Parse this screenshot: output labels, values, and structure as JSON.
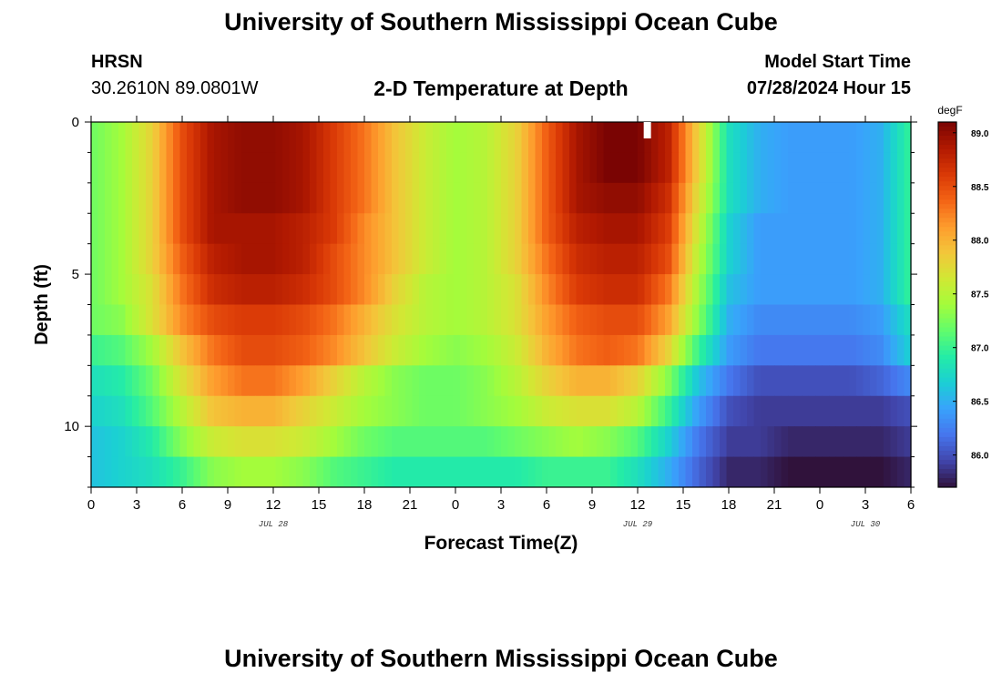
{
  "page_title": "University of Southern Mississippi Ocean Cube",
  "page_title_bottom": "University of Southern Mississippi Ocean Cube",
  "station": {
    "name": "HRSN",
    "coords": "30.2610N  89.0801W"
  },
  "plot_title": "2-D Temperature at Depth",
  "model_start": {
    "label": "Model Start Time",
    "value": "07/28/2024 Hour 15"
  },
  "chart_data": {
    "type": "heatmap",
    "title": "2-D Temperature at Depth",
    "xlabel": "Forecast Time(Z)",
    "ylabel": "Depth (ft)",
    "colorbar_label": "degF",
    "x_ticks": [
      "0",
      "3",
      "6",
      "9",
      "12",
      "15",
      "18",
      "21",
      "0",
      "3",
      "6",
      "9",
      "12",
      "15",
      "18",
      "21",
      "0",
      "3",
      "6"
    ],
    "x_range_hours": [
      0,
      54
    ],
    "date_labels": [
      {
        "label": "JUL 28",
        "at_hour": 12
      },
      {
        "label": "JUL 29",
        "at_hour": 36
      },
      {
        "label": "JUL 30",
        "at_hour": 51
      }
    ],
    "y_ticks": [
      "0",
      "5",
      "10"
    ],
    "y_range_ft": [
      0,
      12
    ],
    "y_inverted": true,
    "colorbar_ticks": [
      "89.0",
      "88.5",
      "88.0",
      "87.5",
      "87.0",
      "86.5",
      "86.0"
    ],
    "color_range_degF": [
      85.7,
      89.1
    ],
    "colormap": [
      "#30123b",
      "#4145ab",
      "#4675ed",
      "#39a2fc",
      "#1bcfd4",
      "#24eca6",
      "#61fc6c",
      "#a4fc3b",
      "#d1e834",
      "#f3c63a",
      "#fe9b2d",
      "#f36315",
      "#d93806",
      "#b11901",
      "#7a0403"
    ],
    "depth_levels_ft": [
      0.5,
      1.5,
      2.5,
      3.5,
      4.5,
      5.5,
      6.5,
      7.5,
      8.5,
      9.5,
      10.5,
      11.5
    ],
    "time_hours": [
      0,
      2,
      4,
      6,
      8,
      10,
      12,
      14,
      16,
      18,
      20,
      22,
      24,
      26,
      28,
      30,
      32,
      34,
      36,
      38,
      40,
      42,
      44,
      46,
      48,
      50,
      52,
      54
    ],
    "temperature_degF": [
      [
        87.2,
        87.4,
        87.8,
        88.5,
        88.9,
        89.0,
        89.0,
        88.9,
        88.6,
        88.3,
        87.9,
        87.6,
        87.4,
        87.5,
        87.8,
        88.4,
        88.9,
        89.1,
        89.1,
        88.8,
        87.8,
        86.8,
        86.5,
        86.4,
        86.4,
        86.4,
        86.5,
        87.0
      ],
      [
        87.2,
        87.4,
        87.8,
        88.5,
        88.9,
        89.0,
        89.0,
        88.9,
        88.6,
        88.3,
        87.9,
        87.6,
        87.4,
        87.5,
        87.8,
        88.4,
        88.9,
        89.1,
        89.1,
        88.8,
        87.8,
        86.8,
        86.5,
        86.4,
        86.4,
        86.4,
        86.5,
        87.0
      ],
      [
        87.2,
        87.4,
        87.8,
        88.5,
        88.9,
        89.0,
        89.0,
        88.9,
        88.6,
        88.3,
        87.9,
        87.6,
        87.4,
        87.5,
        87.8,
        88.4,
        88.9,
        89.0,
        89.0,
        88.7,
        87.7,
        86.8,
        86.5,
        86.4,
        86.4,
        86.4,
        86.5,
        87.0
      ],
      [
        87.2,
        87.4,
        87.8,
        88.5,
        88.9,
        88.9,
        88.9,
        88.8,
        88.6,
        88.2,
        87.9,
        87.6,
        87.4,
        87.5,
        87.8,
        88.4,
        88.8,
        88.9,
        88.9,
        88.6,
        87.6,
        86.7,
        86.4,
        86.4,
        86.4,
        86.4,
        86.5,
        87.0
      ],
      [
        87.2,
        87.4,
        87.8,
        88.4,
        88.8,
        88.9,
        88.9,
        88.8,
        88.5,
        88.2,
        87.9,
        87.6,
        87.4,
        87.5,
        87.8,
        88.3,
        88.7,
        88.8,
        88.8,
        88.5,
        87.5,
        86.7,
        86.4,
        86.4,
        86.4,
        86.4,
        86.5,
        87.0
      ],
      [
        87.2,
        87.4,
        87.7,
        88.3,
        88.7,
        88.8,
        88.8,
        88.7,
        88.5,
        88.2,
        87.8,
        87.5,
        87.4,
        87.5,
        87.7,
        88.2,
        88.6,
        88.7,
        88.7,
        88.3,
        87.4,
        86.6,
        86.4,
        86.4,
        86.4,
        86.4,
        86.5,
        87.0
      ],
      [
        87.2,
        87.3,
        87.7,
        88.2,
        88.5,
        88.6,
        88.6,
        88.5,
        88.3,
        88.0,
        87.7,
        87.5,
        87.4,
        87.5,
        87.7,
        88.1,
        88.4,
        88.5,
        88.5,
        88.1,
        87.3,
        86.5,
        86.3,
        86.3,
        86.3,
        86.3,
        86.4,
        86.8
      ],
      [
        87.0,
        87.1,
        87.4,
        87.9,
        88.3,
        88.5,
        88.5,
        88.4,
        88.2,
        87.9,
        87.6,
        87.4,
        87.3,
        87.4,
        87.6,
        88.0,
        88.3,
        88.4,
        88.3,
        87.8,
        87.0,
        86.4,
        86.2,
        86.2,
        86.2,
        86.2,
        86.3,
        86.7
      ],
      [
        86.8,
        86.9,
        87.2,
        87.7,
        88.1,
        88.3,
        88.3,
        88.1,
        87.8,
        87.5,
        87.3,
        87.2,
        87.2,
        87.3,
        87.5,
        87.8,
        88.0,
        88.0,
        87.8,
        87.3,
        86.6,
        86.2,
        86.0,
        86.0,
        86.0,
        86.0,
        86.1,
        86.3
      ],
      [
        86.7,
        86.8,
        87.1,
        87.5,
        87.9,
        88.0,
        88.0,
        87.8,
        87.6,
        87.4,
        87.3,
        87.2,
        87.2,
        87.3,
        87.4,
        87.6,
        87.7,
        87.7,
        87.5,
        87.0,
        86.4,
        86.0,
        85.9,
        85.9,
        85.9,
        85.9,
        85.9,
        86.0
      ],
      [
        86.6,
        86.7,
        86.9,
        87.3,
        87.6,
        87.7,
        87.7,
        87.6,
        87.4,
        87.2,
        87.1,
        87.1,
        87.1,
        87.1,
        87.2,
        87.3,
        87.4,
        87.3,
        87.1,
        86.7,
        86.2,
        85.9,
        85.9,
        85.8,
        85.8,
        85.8,
        85.8,
        85.9
      ],
      [
        86.6,
        86.7,
        86.8,
        87.0,
        87.3,
        87.4,
        87.4,
        87.3,
        87.1,
        87.0,
        86.9,
        86.9,
        86.9,
        86.9,
        86.9,
        87.0,
        87.0,
        87.0,
        86.8,
        86.5,
        86.1,
        85.8,
        85.8,
        85.7,
        85.7,
        85.7,
        85.7,
        85.8
      ]
    ]
  }
}
